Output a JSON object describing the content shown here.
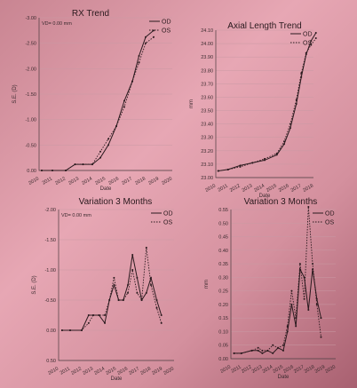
{
  "chart_data": [
    {
      "type": "line",
      "title": "RX Trend",
      "annotation": "VD= 0.00 mm",
      "xlabel": "Date",
      "ylabel": "S.E. (D)",
      "y_reversed": true,
      "ylim": [
        0.0,
        -3.0
      ],
      "y_ticks": [
        0.0,
        -0.5,
        -1.0,
        -1.5,
        -2.0,
        -2.5,
        -3.0
      ],
      "y_tick_labels": [
        "0.00",
        "-0.50",
        "-1.00",
        "-1.50",
        "-2.00",
        "-2.50",
        "-3.00"
      ],
      "x_ticks": [
        2010,
        2011,
        2012,
        2013,
        2014,
        2015,
        2016,
        2017,
        2018,
        2019,
        2020
      ],
      "grid": true,
      "legend_position": "top-right",
      "series": [
        {
          "name": "OD",
          "style": "solid",
          "x": [
            2010.2,
            2011.0,
            2012.0,
            2012.7,
            2013.3,
            2014.0,
            2014.6,
            2015.2,
            2015.8,
            2016.4,
            2017.0,
            2017.5,
            2018.0,
            2018.6
          ],
          "y": [
            0.0,
            0.0,
            0.0,
            -0.12,
            -0.12,
            -0.12,
            -0.25,
            -0.5,
            -0.87,
            -1.37,
            -1.75,
            -2.25,
            -2.62,
            -2.75
          ]
        },
        {
          "name": "OS",
          "style": "dotted",
          "x": [
            2010.2,
            2011.0,
            2012.0,
            2012.7,
            2013.3,
            2014.0,
            2014.6,
            2015.2,
            2015.8,
            2016.4,
            2017.0,
            2017.5,
            2018.0,
            2018.6
          ],
          "y": [
            0.0,
            0.0,
            0.0,
            -0.12,
            -0.12,
            -0.12,
            -0.37,
            -0.62,
            -0.87,
            -1.25,
            -1.75,
            -2.12,
            -2.5,
            -2.62
          ]
        }
      ]
    },
    {
      "type": "line",
      "title": "Axial Length Trend",
      "xlabel": "Date",
      "ylabel": "mm",
      "ylim": [
        23.0,
        24.1
      ],
      "y_ticks": [
        23.0,
        23.1,
        23.2,
        23.3,
        23.4,
        23.5,
        23.6,
        23.7,
        23.8,
        23.9,
        24.0,
        24.1
      ],
      "y_tick_labels": [
        "23.00",
        "23.10",
        "23.20",
        "23.30",
        "23.40",
        "23.50",
        "23.60",
        "23.70",
        "23.80",
        "23.90",
        "24.00",
        "24.10"
      ],
      "x_ticks": [
        2010,
        2011,
        2012,
        2013,
        2014,
        2015,
        2016,
        2017,
        2018
      ],
      "grid": true,
      "legend_position": "top-right",
      "series": [
        {
          "name": "OD",
          "style": "solid",
          "x": [
            2010.2,
            2011.0,
            2012.0,
            2013.0,
            2014.0,
            2015.0,
            2015.6,
            2016.1,
            2016.6,
            2017.0,
            2017.4,
            2017.8,
            2018.2
          ],
          "y": [
            23.05,
            23.06,
            23.09,
            23.11,
            23.13,
            23.17,
            23.25,
            23.37,
            23.55,
            23.75,
            23.92,
            24.02,
            24.08
          ]
        },
        {
          "name": "OS",
          "style": "dotted",
          "x": [
            2010.2,
            2011.0,
            2012.0,
            2013.0,
            2014.0,
            2015.0,
            2015.6,
            2016.1,
            2016.6,
            2017.0,
            2017.4,
            2017.8,
            2018.2
          ],
          "y": [
            23.05,
            23.06,
            23.08,
            23.11,
            23.14,
            23.18,
            23.27,
            23.4,
            23.58,
            23.78,
            23.93,
            23.99,
            24.04
          ]
        }
      ]
    },
    {
      "type": "line",
      "title": "Variation 3 Months",
      "annotation": "VD= 0.00 mm",
      "xlabel": "Date",
      "ylabel": "S.E. (D)",
      "y_reversed": true,
      "ylim": [
        0.5,
        -2.0
      ],
      "y_ticks": [
        0.5,
        0.0,
        -0.5,
        -1.0,
        -1.5,
        -2.0
      ],
      "y_tick_labels": [
        "0.50",
        "0.00",
        "-0.50",
        "-1.00",
        "-1.50",
        "-2.00"
      ],
      "x_ticks": [
        2010,
        2011,
        2012,
        2013,
        2014,
        2015,
        2016,
        2017,
        2018,
        2019,
        2020
      ],
      "grid": true,
      "legend_position": "top-right",
      "series": [
        {
          "name": "OD",
          "style": "solid",
          "x": [
            2010.3,
            2011.0,
            2012.0,
            2012.6,
            2013.0,
            2013.5,
            2014.0,
            2014.4,
            2014.8,
            2015.2,
            2015.6,
            2016.0,
            2016.4,
            2016.8,
            2017.2,
            2017.6,
            2018.0,
            2018.5,
            2018.9
          ],
          "y": [
            0.0,
            0.0,
            0.0,
            -0.25,
            -0.25,
            -0.25,
            -0.12,
            -0.5,
            -0.75,
            -0.5,
            -0.5,
            -0.75,
            -1.25,
            -0.87,
            -0.5,
            -0.62,
            -0.87,
            -0.5,
            -0.25
          ]
        },
        {
          "name": "OS",
          "style": "dotted",
          "x": [
            2010.3,
            2011.0,
            2012.0,
            2012.6,
            2013.0,
            2013.5,
            2014.0,
            2014.4,
            2014.8,
            2015.2,
            2015.6,
            2016.0,
            2016.4,
            2016.8,
            2017.2,
            2017.6,
            2018.0,
            2018.5,
            2018.9
          ],
          "y": [
            0.0,
            0.0,
            0.0,
            -0.12,
            -0.25,
            -0.25,
            -0.25,
            -0.5,
            -0.87,
            -0.5,
            -0.5,
            -0.62,
            -1.0,
            -0.62,
            -0.5,
            -1.37,
            -0.75,
            -0.37,
            -0.12
          ]
        }
      ]
    },
    {
      "type": "line",
      "title": "Variation 3 Months",
      "xlabel": "Date",
      "ylabel": "mm",
      "ylim": [
        0.0,
        0.55
      ],
      "y_ticks": [
        0.0,
        0.05,
        0.1,
        0.15,
        0.2,
        0.25,
        0.3,
        0.35,
        0.4,
        0.45,
        0.5,
        0.55
      ],
      "y_tick_labels": [
        "0.00",
        "0.05",
        "0.10",
        "0.15",
        "0.20",
        "0.25",
        "0.30",
        "0.35",
        "0.40",
        "0.45",
        "0.50",
        "0.55"
      ],
      "x_ticks": [
        2010,
        2011,
        2012,
        2013,
        2014,
        2015,
        2016,
        2017,
        2018,
        2019,
        2020
      ],
      "grid": true,
      "legend_position": "top-right",
      "series": [
        {
          "name": "OD",
          "style": "solid",
          "x": [
            2010.3,
            2011.0,
            2012.0,
            2012.6,
            2013.0,
            2013.5,
            2014.0,
            2014.5,
            2015.0,
            2015.4,
            2015.8,
            2016.2,
            2016.6,
            2017.0,
            2017.4,
            2017.8,
            2018.2,
            2018.6
          ],
          "y": [
            0.02,
            0.02,
            0.03,
            0.03,
            0.02,
            0.03,
            0.02,
            0.04,
            0.03,
            0.1,
            0.2,
            0.12,
            0.33,
            0.3,
            0.18,
            0.33,
            0.22,
            0.15
          ]
        },
        {
          "name": "OS",
          "style": "dotted",
          "x": [
            2010.3,
            2011.0,
            2012.0,
            2012.6,
            2013.0,
            2013.5,
            2014.0,
            2014.5,
            2015.0,
            2015.4,
            2015.8,
            2016.2,
            2016.6,
            2017.0,
            2017.4,
            2017.8,
            2018.2,
            2018.6
          ],
          "y": [
            0.02,
            0.02,
            0.03,
            0.04,
            0.03,
            0.03,
            0.05,
            0.04,
            0.05,
            0.12,
            0.25,
            0.15,
            0.35,
            0.22,
            0.56,
            0.35,
            0.2,
            0.08
          ]
        }
      ]
    }
  ]
}
